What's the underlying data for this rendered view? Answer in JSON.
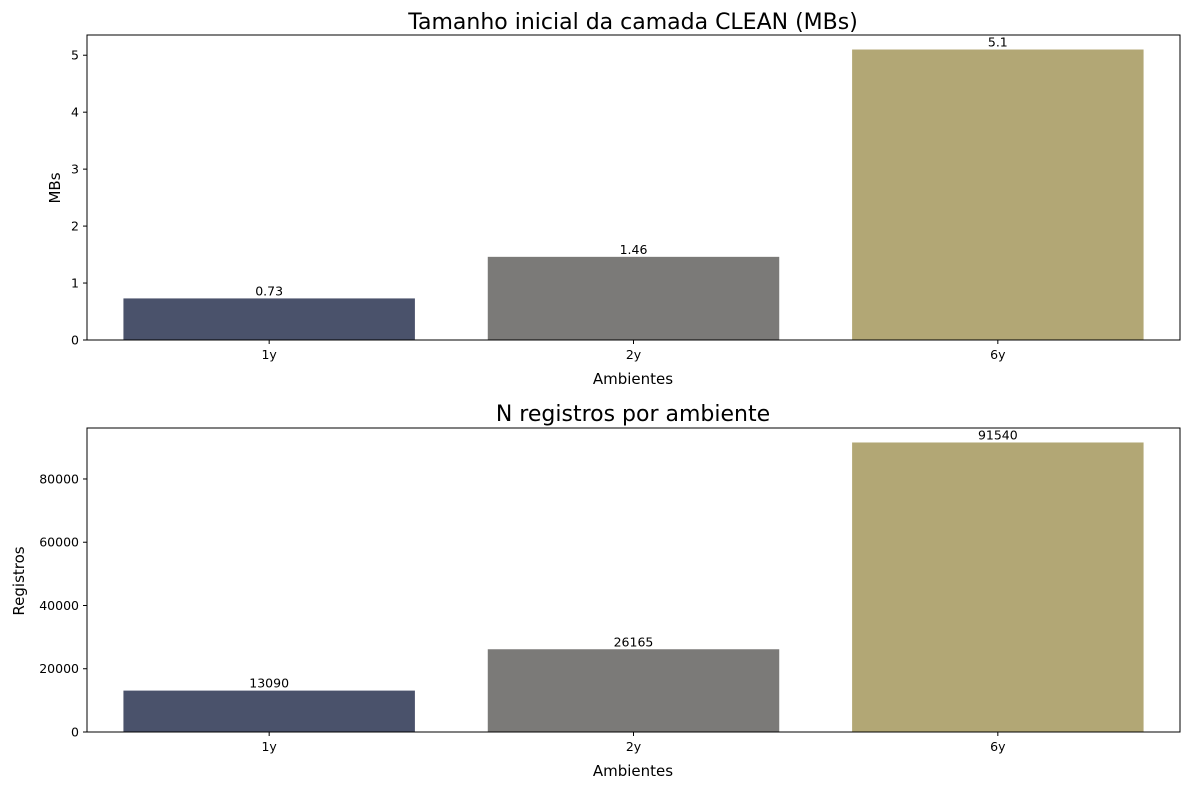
{
  "chart_data": [
    {
      "type": "bar",
      "title": "Tamanho inicial da camada CLEAN (MBs)",
      "xlabel": "Ambientes",
      "ylabel": "MBs",
      "categories": [
        "1y",
        "2y",
        "6y"
      ],
      "values": [
        0.73,
        1.46,
        5.1
      ],
      "data_labels": [
        "0.73",
        "1.46",
        "5.1"
      ],
      "ylim": [
        0,
        5.355
      ],
      "yticks": [
        0,
        1,
        2,
        3,
        4,
        5
      ],
      "ytick_labels": [
        "0",
        "1",
        "2",
        "3",
        "4",
        "5"
      ],
      "colors": [
        "#4a526b",
        "#7b7a78",
        "#b2a775"
      ],
      "grid": false
    },
    {
      "type": "bar",
      "title": "N registros por ambiente",
      "xlabel": "Ambientes",
      "ylabel": "Registros",
      "categories": [
        "1y",
        "2y",
        "6y"
      ],
      "values": [
        13090,
        26165,
        91540
      ],
      "data_labels": [
        "13090",
        "26165",
        "91540"
      ],
      "ylim": [
        0,
        96117
      ],
      "yticks": [
        0,
        20000,
        40000,
        60000,
        80000
      ],
      "ytick_labels": [
        "0",
        "20000",
        "40000",
        "60000",
        "80000"
      ],
      "colors": [
        "#4a526b",
        "#7b7a78",
        "#b2a775"
      ],
      "grid": false
    }
  ]
}
